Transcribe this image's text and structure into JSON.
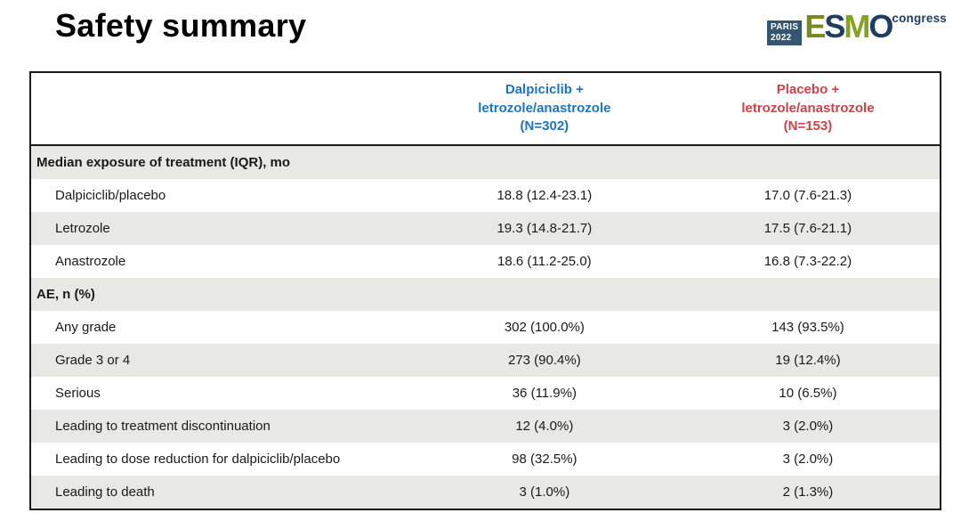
{
  "slide": {
    "title": "Safety summary"
  },
  "logo": {
    "paris_line1": "PARIS",
    "paris_line2": "2022",
    "paris_box_color": "#35566F",
    "esmo_letters": [
      {
        "char": "E",
        "color": "#7A8B1E"
      },
      {
        "char": "S",
        "color": "#1F3E63"
      },
      {
        "char": "M",
        "color": "#84A31E"
      },
      {
        "char": "O",
        "color": "#1F3E63"
      }
    ],
    "congress_label": "congress",
    "congress_color": "#1F3E63"
  },
  "table": {
    "columns": [
      {
        "line1": "Dalpiciclib +",
        "line2": "letrozole/anastrozole",
        "line3": "(N=302)",
        "color": "#1B75C0"
      },
      {
        "line1": "Placebo +",
        "line2": "letrozole/anastrozole",
        "line3": "(N=153)",
        "color": "#CE4147"
      }
    ],
    "rows": [
      {
        "type": "section",
        "label": "Median exposure of treatment (IQR), mo",
        "col1": "",
        "col2": ""
      },
      {
        "type": "data",
        "label": "Dalpiciclib/placebo",
        "col1": "18.8 (12.4-23.1)",
        "col2": "17.0 (7.6-21.3)"
      },
      {
        "type": "data",
        "label": "Letrozole",
        "col1": "19.3 (14.8-21.7)",
        "col2": "17.5 (7.6-21.1)"
      },
      {
        "type": "data",
        "label": "Anastrozole",
        "col1": "18.6 (11.2-25.0)",
        "col2": "16.8 (7.3-22.2)"
      },
      {
        "type": "section",
        "label": "AE, n (%)",
        "col1": "",
        "col2": ""
      },
      {
        "type": "data",
        "label": "Any grade",
        "col1": "302 (100.0%)",
        "col2": "143 (93.5%)"
      },
      {
        "type": "data",
        "label": "Grade 3 or 4",
        "col1": "273 (90.4%)",
        "col2": "19 (12.4%)"
      },
      {
        "type": "data",
        "label": "Serious",
        "col1": "36 (11.9%)",
        "col2": "10 (6.5%)"
      },
      {
        "type": "data",
        "label": "Leading to treatment discontinuation",
        "col1": "12 (4.0%)",
        "col2": "3 (2.0%)"
      },
      {
        "type": "data",
        "label": "Leading to dose reduction for dalpiciclib/placebo",
        "col1": "98 (32.5%)",
        "col2": "3 (2.0%)"
      },
      {
        "type": "data",
        "label": "Leading to death",
        "col1": "3 (1.0%)",
        "col2": "2 (1.3%)"
      }
    ],
    "colors": {
      "shaded_row_bg": "#E8E8E5",
      "border": "#1A1A1A"
    }
  }
}
